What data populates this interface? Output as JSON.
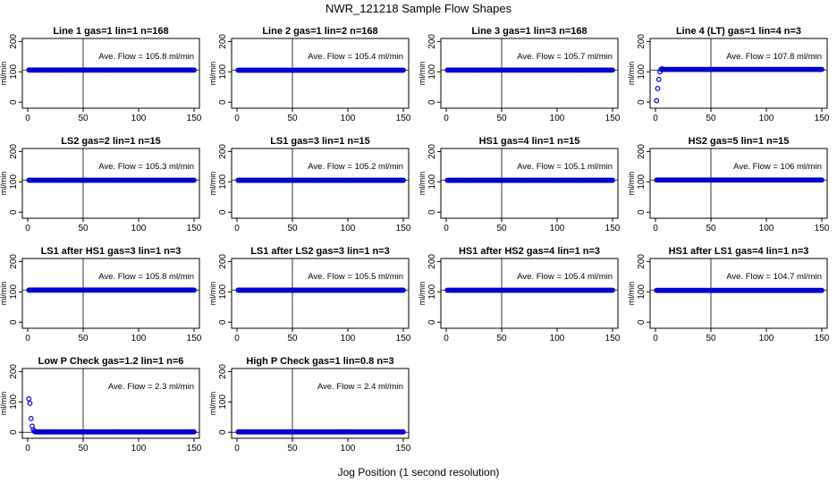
{
  "title": "NWR_121218  Sample Flow Shapes",
  "xlabel": "Jog Position (1 second resolution)",
  "colors": {
    "points": "#0000cc",
    "axes": "#000000",
    "grid": "#000000"
  },
  "chart_data": [
    {
      "type": "scatter",
      "title": "Line 1 gas=1 lin=1 n=168",
      "ylabel": "ml/min",
      "annotation": "Ave. Flow =  105.8  ml/min",
      "xlim": [
        0,
        150
      ],
      "ylim": [
        -20,
        210
      ],
      "xticks": [
        0,
        50,
        100,
        150
      ],
      "yticks": [
        0,
        100,
        200
      ],
      "vline": 50,
      "hline": 106,
      "x_range": [
        1,
        150
      ],
      "values": {
        "start": [],
        "steady": 105.8
      }
    },
    {
      "type": "scatter",
      "title": "Line 2 gas=1 lin=2 n=168",
      "ylabel": "ml/min",
      "annotation": "Ave. Flow =  105.4  ml/min",
      "xlim": [
        0,
        150
      ],
      "ylim": [
        -20,
        210
      ],
      "xticks": [
        0,
        50,
        100,
        150
      ],
      "yticks": [
        0,
        100,
        200
      ],
      "vline": 50,
      "hline": 106,
      "x_range": [
        1,
        150
      ],
      "values": {
        "start": [],
        "steady": 105.4
      }
    },
    {
      "type": "scatter",
      "title": "Line 3 gas=1 lin=3 n=168",
      "ylabel": "ml/min",
      "annotation": "Ave. Flow =  105.7  ml/min",
      "xlim": [
        0,
        150
      ],
      "ylim": [
        -20,
        210
      ],
      "xticks": [
        0,
        50,
        100,
        150
      ],
      "yticks": [
        0,
        100,
        200
      ],
      "vline": 50,
      "hline": 106,
      "x_range": [
        1,
        150
      ],
      "values": {
        "start": [],
        "steady": 105.7
      }
    },
    {
      "type": "scatter",
      "title": "Line 4 (LT) gas=1 lin=4 n=3",
      "ylabel": "ml/min",
      "annotation": "Ave. Flow =  107.8  ml/min",
      "xlim": [
        0,
        150
      ],
      "ylim": [
        -20,
        210
      ],
      "xticks": [
        0,
        50,
        100,
        150
      ],
      "yticks": [
        0,
        100,
        200
      ],
      "vline": 50,
      "hline": 106,
      "x_range": [
        1,
        150
      ],
      "values": {
        "start": [
          5,
          45,
          75,
          100,
          108,
          110
        ],
        "steady": 108
      }
    },
    {
      "type": "scatter",
      "title": "LS2 gas=2 lin=1 n=15",
      "ylabel": "ml/min",
      "annotation": "Ave. Flow =  105.3  ml/min",
      "xlim": [
        0,
        150
      ],
      "ylim": [
        -20,
        210
      ],
      "xticks": [
        0,
        50,
        100,
        150
      ],
      "yticks": [
        0,
        100,
        200
      ],
      "vline": 50,
      "hline": 106,
      "x_range": [
        1,
        150
      ],
      "values": {
        "start": [],
        "steady": 105.3
      }
    },
    {
      "type": "scatter",
      "title": "LS1 gas=3 lin=1 n=15",
      "ylabel": "ml/min",
      "annotation": "Ave. Flow =  105.2  ml/min",
      "xlim": [
        0,
        150
      ],
      "ylim": [
        -20,
        210
      ],
      "xticks": [
        0,
        50,
        100,
        150
      ],
      "yticks": [
        0,
        100,
        200
      ],
      "vline": 50,
      "hline": 106,
      "x_range": [
        1,
        150
      ],
      "values": {
        "start": [],
        "steady": 105.2
      }
    },
    {
      "type": "scatter",
      "title": "HS1 gas=4 lin=1 n=15",
      "ylabel": "ml/min",
      "annotation": "Ave. Flow =  105.1  ml/min",
      "xlim": [
        0,
        150
      ],
      "ylim": [
        -20,
        210
      ],
      "xticks": [
        0,
        50,
        100,
        150
      ],
      "yticks": [
        0,
        100,
        200
      ],
      "vline": 50,
      "hline": 106,
      "x_range": [
        1,
        150
      ],
      "values": {
        "start": [],
        "steady": 105.1
      }
    },
    {
      "type": "scatter",
      "title": "HS2 gas=5 lin=1 n=15",
      "ylabel": "ml/min",
      "annotation": "Ave. Flow =  106  ml/min",
      "xlim": [
        0,
        150
      ],
      "ylim": [
        -20,
        210
      ],
      "xticks": [
        0,
        50,
        100,
        150
      ],
      "yticks": [
        0,
        100,
        200
      ],
      "vline": 50,
      "hline": 106,
      "x_range": [
        1,
        150
      ],
      "values": {
        "start": [],
        "steady": 106
      }
    },
    {
      "type": "scatter",
      "title": "LS1 after HS1 gas=3 lin=1 n=3",
      "ylabel": "ml/min",
      "annotation": "Ave. Flow =  105.8  ml/min",
      "xlim": [
        0,
        150
      ],
      "ylim": [
        -20,
        210
      ],
      "xticks": [
        0,
        50,
        100,
        150
      ],
      "yticks": [
        0,
        100,
        200
      ],
      "vline": 50,
      "hline": 106,
      "x_range": [
        1,
        150
      ],
      "values": {
        "start": [],
        "steady": 105.8
      }
    },
    {
      "type": "scatter",
      "title": "LS1 after LS2 gas=3 lin=1 n=3",
      "ylabel": "ml/min",
      "annotation": "Ave. Flow =  105.5  ml/min",
      "xlim": [
        0,
        150
      ],
      "ylim": [
        -20,
        210
      ],
      "xticks": [
        0,
        50,
        100,
        150
      ],
      "yticks": [
        0,
        100,
        200
      ],
      "vline": 50,
      "hline": 106,
      "x_range": [
        1,
        150
      ],
      "values": {
        "start": [],
        "steady": 105.5
      }
    },
    {
      "type": "scatter",
      "title": "HS1 after HS2 gas=4 lin=1 n=3",
      "ylabel": "ml/min",
      "annotation": "Ave. Flow =  105.4  ml/min",
      "xlim": [
        0,
        150
      ],
      "ylim": [
        -20,
        210
      ],
      "xticks": [
        0,
        50,
        100,
        150
      ],
      "yticks": [
        0,
        100,
        200
      ],
      "vline": 50,
      "hline": 106,
      "x_range": [
        1,
        150
      ],
      "values": {
        "start": [],
        "steady": 105.4
      }
    },
    {
      "type": "scatter",
      "title": "HS1 after LS1 gas=4 lin=1 n=3",
      "ylabel": "ml/min",
      "annotation": "Ave. Flow =  104.7  ml/min",
      "xlim": [
        0,
        150
      ],
      "ylim": [
        -20,
        210
      ],
      "xticks": [
        0,
        50,
        100,
        150
      ],
      "yticks": [
        0,
        100,
        200
      ],
      "vline": 50,
      "hline": 106,
      "x_range": [
        1,
        150
      ],
      "values": {
        "start": [],
        "steady": 104.7
      }
    },
    {
      "type": "scatter",
      "title": "Low P Check gas=1.2 lin=1 n=6",
      "ylabel": "ml/min",
      "annotation": "Ave. Flow =  2.3  ml/min",
      "xlim": [
        0,
        150
      ],
      "ylim": [
        -20,
        210
      ],
      "xticks": [
        0,
        50,
        100,
        150
      ],
      "yticks": [
        0,
        100,
        200
      ],
      "vline": 50,
      "hline": 0,
      "x_range": [
        1,
        150
      ],
      "values": {
        "start": [
          110,
          95,
          45,
          20,
          8,
          3
        ],
        "steady": 1
      }
    },
    {
      "type": "scatter",
      "title": "High P Check gas=1 lin=0.8 n=3",
      "ylabel": "ml/min",
      "annotation": "Ave. Flow =  2.4  ml/min",
      "xlim": [
        0,
        150
      ],
      "ylim": [
        -20,
        210
      ],
      "xticks": [
        0,
        50,
        100,
        150
      ],
      "yticks": [
        0,
        100,
        200
      ],
      "vline": 50,
      "hline": 0,
      "x_range": [
        1,
        150
      ],
      "values": {
        "start": [],
        "steady": 1
      }
    }
  ]
}
